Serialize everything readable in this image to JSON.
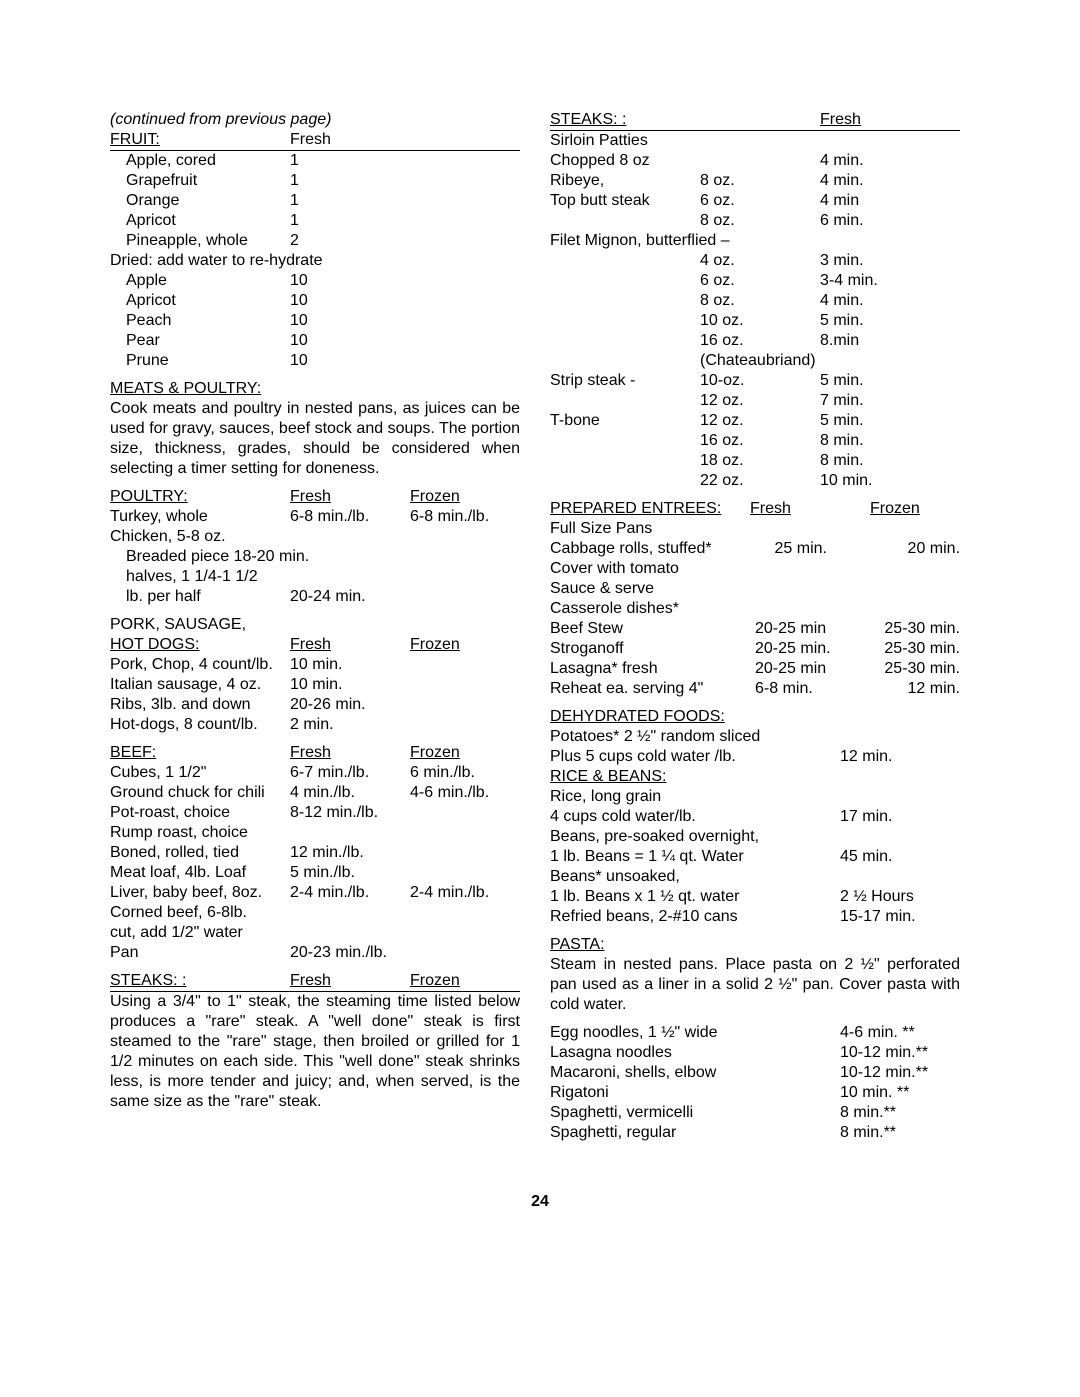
{
  "continued": "(continued from previous page)",
  "fruit": {
    "header": {
      "label": "FRUIT:",
      "col": "Fresh"
    },
    "fresh": [
      {
        "name": "Apple, cored",
        "val": "1"
      },
      {
        "name": "Grapefruit",
        "val": "1"
      },
      {
        "name": "Orange",
        "val": "1"
      },
      {
        "name": "Apricot",
        "val": "1"
      },
      {
        "name": "Pineapple, whole",
        "val": "2"
      }
    ],
    "driedLabel": "Dried:  add water to re-hydrate",
    "dried": [
      {
        "name": "Apple",
        "val": "10"
      },
      {
        "name": "Apricot",
        "val": "10"
      },
      {
        "name": "Peach",
        "val": "10"
      },
      {
        "name": "Pear",
        "val": "10"
      },
      {
        "name": "Prune",
        "val": "10"
      }
    ]
  },
  "meats": {
    "title": "MEATS & POULTRY:",
    "para": "Cook meats and poultry in nested pans, as juices can be used for gravy, sauces, beef stock and soups.  The portion size, thickness, grades, should be considered when selecting a timer setting for doneness."
  },
  "poultry": {
    "header": {
      "label": "POULTRY:",
      "fresh": "Fresh",
      "frozen": "Frozen"
    },
    "rows": [
      {
        "name": "Turkey, whole",
        "fresh": "6-8 min./lb.",
        "frozen": "6-8 min./lb."
      }
    ],
    "chicken1": "Chicken, 5-8 oz.",
    "chicken2": "Breaded piece 18-20 min.",
    "chicken3": "halves, 1 1/4-1 1/2",
    "chicken4": {
      "name": "lb. per half",
      "fresh": "20-24 min."
    }
  },
  "pork": {
    "title": "PORK, SAUSAGE,",
    "header": {
      "label": "HOT DOGS:",
      "fresh": "Fresh",
      "frozen": "Frozen"
    },
    "rows": [
      {
        "name": "Pork, Chop, 4 count/lb.",
        "fresh": "10 min."
      },
      {
        "name": "Italian sausage, 4 oz.",
        "fresh": "10 min."
      },
      {
        "name": "Ribs, 3lb. and down",
        "fresh": "20-26 min."
      },
      {
        "name": "Hot-dogs, 8 count/lb.",
        "fresh": "2 min."
      }
    ]
  },
  "beef": {
    "header": {
      "label": "BEEF:",
      "fresh": "Fresh",
      "frozen": "Frozen"
    },
    "rows": [
      {
        "name": "Cubes, 1 1/2\"",
        "fresh": "6-7 min./lb.",
        "frozen": "6 min./lb."
      },
      {
        "name": "Ground chuck for chili",
        "fresh": "4 min./lb.",
        "frozen": "4-6 min./lb."
      },
      {
        "name": "Pot-roast, choice",
        "fresh": "8-12 min./lb."
      },
      {
        "name": "Rump roast, choice"
      },
      {
        "name": "  Boned, rolled, tied",
        "fresh": "12 min./lb."
      },
      {
        "name": "Meat loaf, 4lb. Loaf",
        "fresh": "  5 min./lb."
      },
      {
        "name": "Liver, baby beef, 8oz.",
        "fresh": "2-4 min./lb.",
        "frozen": "2-4 min./lb."
      },
      {
        "name": "Corned beef, 6-8lb."
      },
      {
        "name": "  cut, add 1/2\" water"
      },
      {
        "name": "  Pan",
        "fresh": "20-23 min./lb."
      }
    ]
  },
  "steaksL": {
    "header": {
      "label": "STEAKS: :",
      "fresh": "Fresh",
      "frozen": "Frozen"
    },
    "para": "Using a 3/4\" to 1\" steak, the steaming time listed below produces a \"rare\" steak.  A \"well done\" steak is first steamed to the \"rare\" stage, then broiled or grilled for 1 1/2 minutes on each side.  This \"well done\" steak shrinks less, is more tender and juicy; and, when served, is the same size as the \"rare\" steak."
  },
  "steaksR": {
    "header": {
      "label": "STEAKS: :",
      "fresh": "Fresh"
    },
    "sirloin": "Sirloin Patties",
    "chopped": {
      "name": "  Chopped 8 oz",
      "val": "4 min."
    },
    "rows": [
      {
        "name": "Ribeye,",
        "size": "8 oz.",
        "val": "4 min."
      },
      {
        "name": "Top butt steak",
        "size": "6 oz.",
        "val": "4 min"
      },
      {
        "name": "",
        "size": "8 oz.",
        "val": "6 min."
      }
    ],
    "filet": "Filet Mignon, butterflied –",
    "filetRows": [
      {
        "size": "4 oz.",
        "val": "3 min."
      },
      {
        "size": "6 oz.",
        "val": "3-4 min."
      },
      {
        "size": "8 oz.",
        "val": "4 min."
      },
      {
        "size": "10 oz.",
        "val": "5 min."
      },
      {
        "size": "16 oz.",
        "val": "8.min"
      }
    ],
    "chateau": "(Chateaubriand)",
    "strip": {
      "name": "Strip steak   -",
      "rows": [
        {
          "size": "10-oz.",
          "val": "5 min."
        },
        {
          "size": "12 oz.",
          "val": "7 min."
        }
      ]
    },
    "tbone": {
      "name": "T-bone",
      "rows": [
        {
          "size": "12 oz.",
          "val": "5 min."
        },
        {
          "size": "16 oz.",
          "val": "8 min."
        },
        {
          "size": "18 oz.",
          "val": "8 min."
        },
        {
          "size": "22 oz.",
          "val": "10 min."
        }
      ]
    }
  },
  "prepared": {
    "header": {
      "label": "PREPARED ENTREES:",
      "fresh": "Fresh",
      "frozen": "Frozen"
    },
    "full": "Full Size Pans",
    "cabbage": {
      "name": "Cabbage rolls, stuffed*",
      "fresh": "25 min.",
      "frozen": "20 min."
    },
    "cover1": "  Cover with tomato",
    "cover2": "  Sauce & serve",
    "cass": "Casserole dishes*",
    "rows": [
      {
        "name": "  Beef Stew",
        "fresh": "20-25 min",
        "frozen": "25-30 min."
      },
      {
        "name": "  Stroganoff",
        "fresh": "20-25 min.",
        "frozen": "25-30 min."
      },
      {
        "name": "Lasagna* fresh",
        "fresh": "20-25 min",
        "frozen": "25-30 min."
      },
      {
        "name": "  Reheat ea. serving 4\"",
        "fresh": "6-8 min.",
        "frozen": "12 min."
      }
    ]
  },
  "dehydrated": {
    "title": "DEHYDRATED FOODS:",
    "pot": "Potatoes* 2 ½\" random sliced",
    "potrow": {
      "name": "Plus 5 cups cold water /lb.",
      "val": "12 min."
    },
    "rice": "RICE & BEANS:",
    "riceL": "Rice, long grain",
    "ricerow": {
      "name": "  4 cups cold water/lb.",
      "val": "17 min."
    },
    "beans1": "Beans, pre-soaked overnight,",
    "beans1row": {
      "name": "  1 lb. Beans = 1 ¼ qt. Water",
      "val": "45 min."
    },
    "beans2": "Beans* unsoaked,",
    "beans2row": {
      "name": "  1 lb. Beans x 1 ½ qt. water",
      "val": "2 ½ Hours"
    },
    "refried": {
      "name": "Refried beans, 2-#10 cans",
      "val": "15-17 min."
    }
  },
  "pasta": {
    "title": "PASTA:",
    "para": "Steam in nested pans. Place pasta on 2 ½\" perforated pan used as a liner in a solid 2 ½\" pan. Cover pasta with cold water.",
    "rows": [
      {
        "name": "Egg noodles, 1 ½\" wide",
        "val": "4-6 min. **"
      },
      {
        "name": "Lasagna noodles",
        "val": "10-12 min.**"
      },
      {
        "name": "Macaroni, shells, elbow",
        "val": "10-12 min.**"
      },
      {
        "name": "Rigatoni",
        "val": "10 min. **"
      },
      {
        "name": "Spaghetti, vermicelli",
        "val": "8 min.**"
      },
      {
        "name": "Spaghetti, regular",
        "val": "8 min.**"
      }
    ]
  },
  "pagenum": "24"
}
